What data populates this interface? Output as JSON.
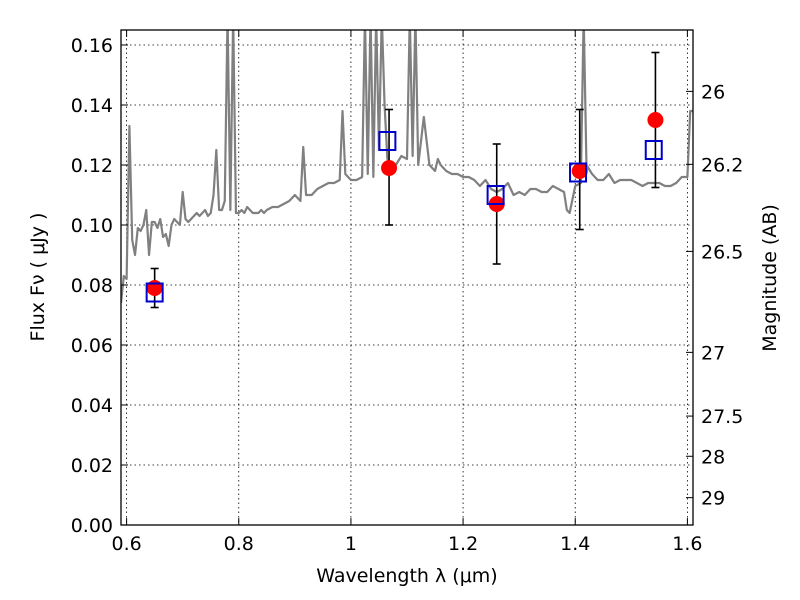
{
  "chart_data": {
    "type": "scatter",
    "xlabel": "Wavelength  λ (μm)",
    "ylabel": "Flux  Fν  ( μJy )",
    "ylabel_right": "Magnitude (AB)",
    "xlim": [
      0.59,
      1.61
    ],
    "ylim": [
      0.0,
      0.165
    ],
    "grid": true,
    "x_ticks": [
      0.6,
      0.8,
      1.0,
      1.2,
      1.4,
      1.6
    ],
    "x_tick_labels": [
      "0.6",
      "0.8",
      "1",
      "1.2",
      "1.4",
      "1.6"
    ],
    "y_ticks": [
      0.0,
      0.02,
      0.04,
      0.06,
      0.08,
      0.1,
      0.12,
      0.14,
      0.16
    ],
    "y_tick_labels": [
      "0.00",
      "0.02",
      "0.04",
      "0.06",
      "0.08",
      "0.10",
      "0.12",
      "0.14",
      "0.16"
    ],
    "right_ticks": [
      {
        "mag": 26.0,
        "label": "26"
      },
      {
        "mag": 26.2,
        "label": "26.2"
      },
      {
        "mag": 26.5,
        "label": "26.5"
      },
      {
        "mag": 27.0,
        "label": "27"
      },
      {
        "mag": 27.5,
        "label": "27.5"
      },
      {
        "mag": 28.0,
        "label": "28"
      },
      {
        "mag": 29.0,
        "label": "29"
      }
    ],
    "colors": {
      "spectrum": "#808080",
      "observed": "#ff0000",
      "model": "#0000cc",
      "errorbar": "#000000"
    },
    "series": [
      {
        "kind": "spectrum",
        "x": [
          0.59,
          0.595,
          0.6,
          0.605,
          0.61,
          0.615,
          0.62,
          0.625,
          0.63,
          0.635,
          0.64,
          0.645,
          0.65,
          0.655,
          0.66,
          0.665,
          0.67,
          0.675,
          0.68,
          0.685,
          0.69,
          0.695,
          0.7,
          0.705,
          0.71,
          0.715,
          0.72,
          0.725,
          0.73,
          0.735,
          0.74,
          0.745,
          0.75,
          0.755,
          0.76,
          0.765,
          0.77,
          0.775,
          0.78,
          0.785,
          0.79,
          0.795,
          0.8,
          0.805,
          0.81,
          0.815,
          0.82,
          0.825,
          0.83,
          0.835,
          0.84,
          0.845,
          0.85,
          0.86,
          0.87,
          0.88,
          0.89,
          0.9,
          0.91,
          0.915,
          0.92,
          0.93,
          0.94,
          0.95,
          0.96,
          0.97,
          0.98,
          0.985,
          0.99,
          1.0,
          1.01,
          1.02,
          1.025,
          1.03,
          1.035,
          1.04,
          1.045,
          1.05,
          1.055,
          1.06,
          1.065,
          1.07,
          1.08,
          1.09,
          1.1,
          1.105,
          1.11,
          1.115,
          1.12,
          1.13,
          1.14,
          1.15,
          1.155,
          1.16,
          1.17,
          1.18,
          1.19,
          1.2,
          1.21,
          1.22,
          1.23,
          1.24,
          1.25,
          1.26,
          1.27,
          1.28,
          1.29,
          1.3,
          1.31,
          1.32,
          1.33,
          1.34,
          1.35,
          1.36,
          1.37,
          1.38,
          1.385,
          1.39,
          1.4,
          1.41,
          1.415,
          1.42,
          1.43,
          1.44,
          1.45,
          1.46,
          1.47,
          1.48,
          1.49,
          1.5,
          1.51,
          1.52,
          1.53,
          1.54,
          1.55,
          1.56,
          1.57,
          1.58,
          1.59,
          1.6,
          1.605,
          1.61
        ],
        "y": [
          0.074,
          0.083,
          0.082,
          0.133,
          0.095,
          0.09,
          0.099,
          0.098,
          0.1,
          0.105,
          0.09,
          0.101,
          0.101,
          0.099,
          0.102,
          0.096,
          0.097,
          0.093,
          0.1,
          0.102,
          0.101,
          0.1,
          0.111,
          0.102,
          0.101,
          0.102,
          0.103,
          0.104,
          0.103,
          0.104,
          0.105,
          0.103,
          0.104,
          0.11,
          0.125,
          0.105,
          0.105,
          0.108,
          0.17,
          0.105,
          0.17,
          0.104,
          0.104,
          0.105,
          0.104,
          0.106,
          0.105,
          0.104,
          0.104,
          0.104,
          0.105,
          0.104,
          0.105,
          0.106,
          0.106,
          0.107,
          0.108,
          0.11,
          0.108,
          0.126,
          0.11,
          0.11,
          0.112,
          0.113,
          0.114,
          0.114,
          0.115,
          0.138,
          0.117,
          0.115,
          0.115,
          0.116,
          0.17,
          0.117,
          0.17,
          0.116,
          0.17,
          0.125,
          0.17,
          0.14,
          0.122,
          0.121,
          0.12,
          0.123,
          0.122,
          0.17,
          0.123,
          0.17,
          0.12,
          0.136,
          0.12,
          0.118,
          0.122,
          0.12,
          0.118,
          0.117,
          0.117,
          0.116,
          0.116,
          0.115,
          0.113,
          0.115,
          0.112,
          0.111,
          0.112,
          0.114,
          0.11,
          0.111,
          0.11,
          0.112,
          0.112,
          0.111,
          0.111,
          0.113,
          0.112,
          0.111,
          0.105,
          0.104,
          0.113,
          0.114,
          0.17,
          0.12,
          0.117,
          0.115,
          0.115,
          0.117,
          0.114,
          0.115,
          0.115,
          0.115,
          0.114,
          0.113,
          0.114,
          0.114,
          0.114,
          0.113,
          0.113,
          0.114,
          0.116,
          0.116,
          0.138,
          0.138
        ]
      },
      {
        "kind": "observed",
        "x": [
          0.65,
          1.068,
          1.26,
          1.408,
          1.543
        ],
        "y": [
          0.079,
          0.119,
          0.107,
          0.118,
          0.135
        ],
        "yerr_low": [
          0.0725,
          0.1,
          0.087,
          0.0985,
          0.1125
        ],
        "yerr_high": [
          0.0855,
          0.1385,
          0.127,
          0.1385,
          0.1575
        ]
      },
      {
        "kind": "model",
        "x": [
          0.65,
          1.065,
          1.258,
          1.405,
          1.54
        ],
        "y": [
          0.0775,
          0.128,
          0.11,
          0.1175,
          0.125
        ]
      }
    ]
  }
}
